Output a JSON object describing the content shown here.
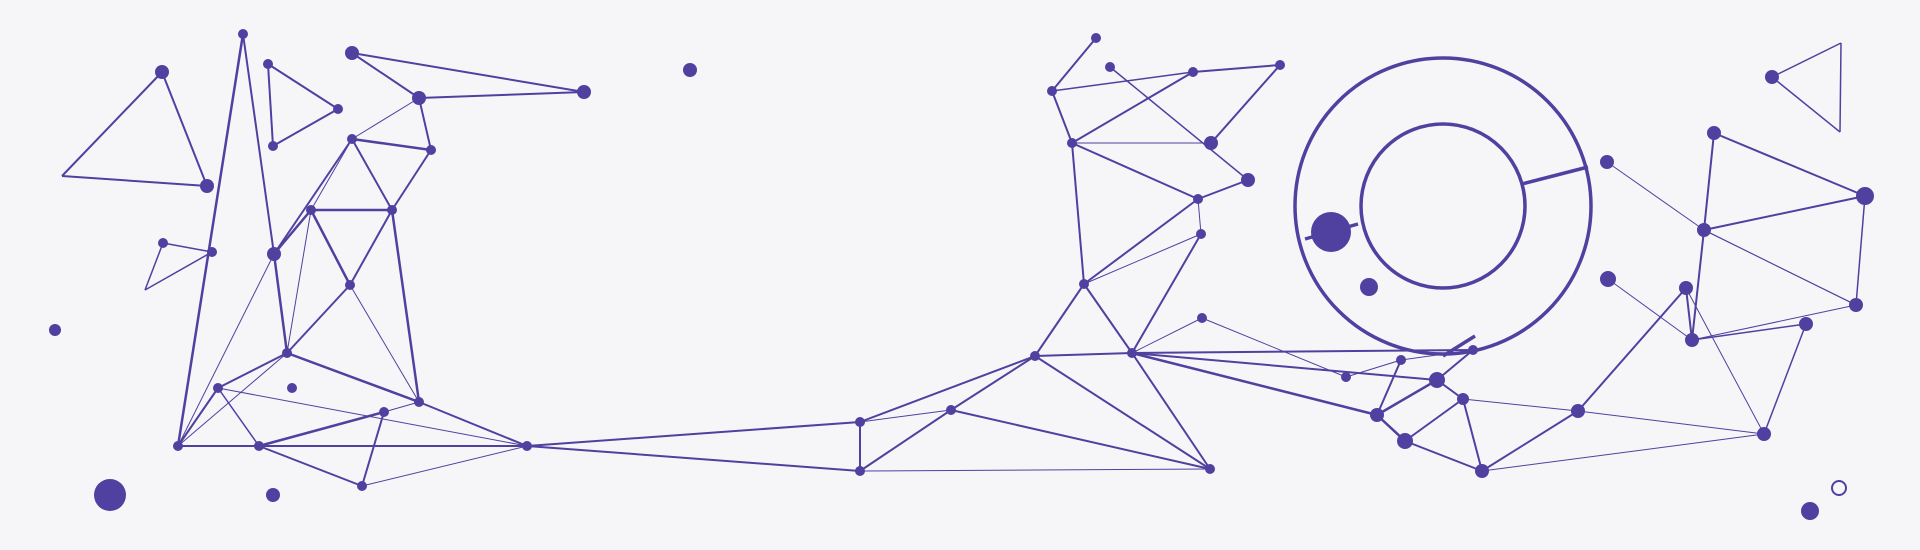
{
  "colors": {
    "background": "#f6f6f8",
    "accent": "#5040a0"
  }
}
